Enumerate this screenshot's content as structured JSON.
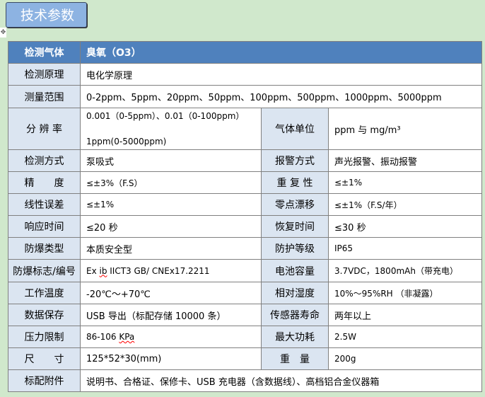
{
  "banner": {
    "title": "技术参数"
  },
  "table": {
    "header": {
      "label": "检测气体",
      "value": "臭氧（O3）"
    },
    "rows": [
      {
        "label": "检测原理",
        "value": "电化学原理"
      },
      {
        "label": "测量范围",
        "value": "0-2ppm、5ppm、20ppm、50ppm、100ppm、500ppm、1000ppm、5000ppm"
      },
      {
        "label": "分 辨 率",
        "value_line1": "0.001（0-5ppm）、0.01（0-100ppm）",
        "value_line2": "1ppm(0-5000ppm)",
        "label2": "气体单位",
        "value2": "ppm 与 mg/m³"
      },
      {
        "label": "检测方式",
        "value": "泵吸式",
        "label2": "报警方式",
        "value2": "声光报警、振动报警"
      },
      {
        "label": "精　　度",
        "value": "≤±3%（F.S）",
        "label2": "重 复 性",
        "value2": "≤±1%"
      },
      {
        "label": "线性误差",
        "value": "≤±1%",
        "label2": "零点漂移",
        "value2": "≤±1%（F.S/年）"
      },
      {
        "label": "响应时间",
        "value": "≤20 秒",
        "label2": "恢复时间",
        "value2": "≤30 秒"
      },
      {
        "label": "防爆类型",
        "value": "本质安全型",
        "label2": "防护等级",
        "value2": "IP65"
      },
      {
        "label": "防爆标志/编号",
        "value_a": "Ex ",
        "value_b": "ib",
        "value_c": "  IICT3 GB/ CNEx17.2211",
        "label2": "电池容量",
        "value2": "3.7VDC，1800mAh（带充电）"
      },
      {
        "label": "工作温度",
        "value": "-20℃～+70℃",
        "label2": "相对湿度",
        "value2": "10%～95%RH （非凝露）"
      },
      {
        "label": "数据保存",
        "value": "USB 导出（标配存储 10000 条）",
        "label2": "传感器寿命",
        "value2": "两年以上"
      },
      {
        "label": "压力限制",
        "value_a": "86-106 ",
        "value_b": "KPa",
        "label2": "最大功耗",
        "value2": "2.5W"
      },
      {
        "label": "尺　　寸",
        "value": "125*52*30(mm)",
        "label2": "重　量",
        "value2": "200g"
      },
      {
        "label": "标配附件",
        "value": "说明书、合格证、保修卡、USB 充电器（含数据线）、高档铝合金仪器箱"
      }
    ]
  }
}
